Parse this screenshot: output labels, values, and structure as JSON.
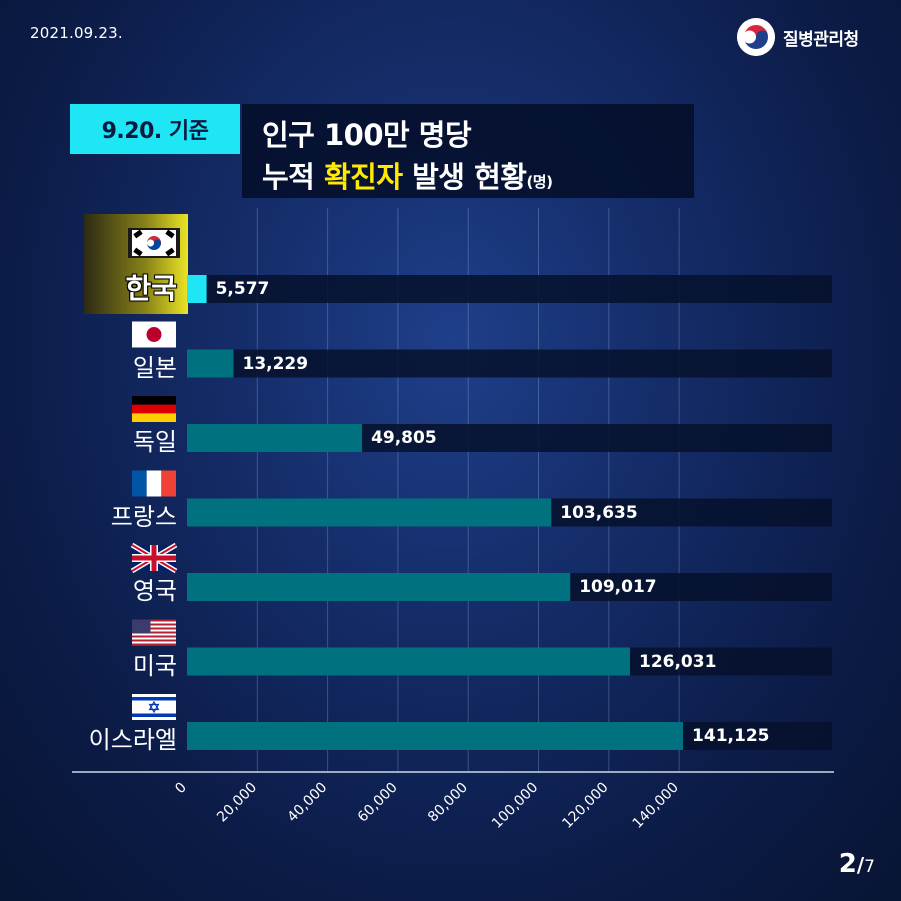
{
  "header": {
    "date": "2021.09.23.",
    "agency_name": "질병관리청"
  },
  "title": {
    "badge": "9.20. 기준",
    "line1": "인구 100만 명당",
    "line2_prefix": "누적 ",
    "line2_highlight": "확진자",
    "line2_suffix": " 발생 현황",
    "unit": "(명)"
  },
  "colors": {
    "bar": "#00717e",
    "highlight_bar": "#1ee6f4",
    "track": "#06102c",
    "title_highlight": "#ffe900",
    "badge": "#1ee6f4"
  },
  "chart_data": {
    "type": "bar",
    "orientation": "horizontal",
    "categories": [
      "한국",
      "일본",
      "독일",
      "프랑스",
      "영국",
      "미국",
      "이스라엘"
    ],
    "values": [
      5577,
      13229,
      49805,
      103635,
      109017,
      126031,
      141125
    ],
    "value_labels": [
      "5,577",
      "13,229",
      "49,805",
      "103,635",
      "109,017",
      "126,031",
      "141,125"
    ],
    "flags": [
      "south-korea-flag",
      "japan-flag",
      "germany-flag",
      "france-flag",
      "uk-flag",
      "usa-flag",
      "israel-flag"
    ],
    "highlight_index": 0,
    "xlim": [
      0,
      180000
    ],
    "xticks": [
      0,
      20000,
      40000,
      60000,
      80000,
      100000,
      120000,
      140000
    ],
    "xtick_labels": [
      "0",
      "20,000",
      "40,000",
      "60,000",
      "80,000",
      "100,000",
      "120,000",
      "140,000"
    ],
    "grid": true
  },
  "pagination": {
    "current": "2",
    "separator": "/",
    "total": "7"
  }
}
